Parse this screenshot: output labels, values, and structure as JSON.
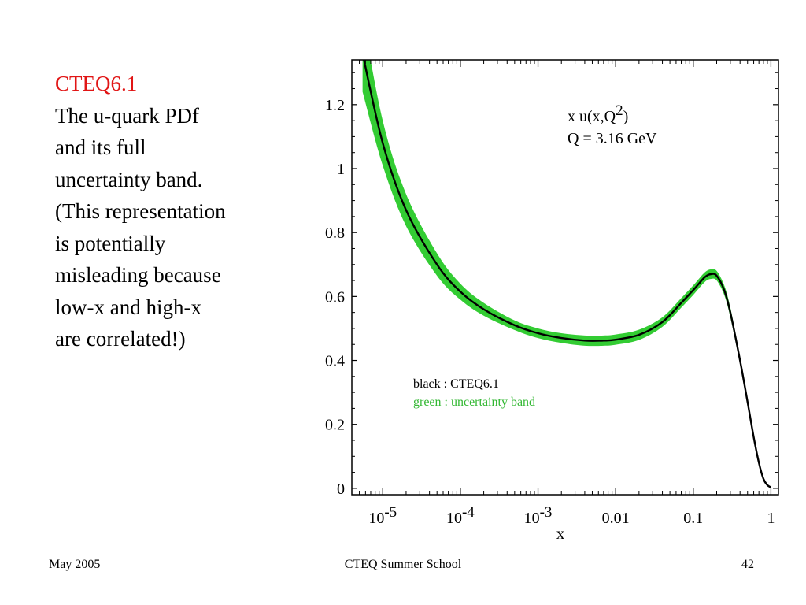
{
  "slide": {
    "title": "CTEQ6.1",
    "body_lines": [
      "The u-quark PDf",
      "and its full",
      "uncertainty band.",
      "(This representation",
      "is potentially",
      "misleading because",
      "low-x and high-x",
      "are correlated!)"
    ],
    "title_color": "#e11515"
  },
  "footer": {
    "date": "May 2005",
    "event": "CTEQ Summer School",
    "page": "42"
  },
  "chart_data": {
    "type": "line",
    "title": "",
    "xlabel": "x",
    "ylabel": "",
    "x_scale": "log",
    "xlim": [
      4e-06,
      1.25
    ],
    "ylim": [
      -0.02,
      1.34
    ],
    "x_ticks": [
      {
        "value": 1e-05,
        "base": "10",
        "exp": "-5"
      },
      {
        "value": 0.0001,
        "base": "10",
        "exp": "-4"
      },
      {
        "value": 0.001,
        "base": "10",
        "exp": "-3"
      },
      {
        "value": 0.01,
        "label": "0.01"
      },
      {
        "value": 0.1,
        "label": "0.1"
      },
      {
        "value": 1,
        "label": "1"
      }
    ],
    "y_ticks": [
      {
        "value": 0,
        "label": "0"
      },
      {
        "value": 0.2,
        "label": "0.2"
      },
      {
        "value": 0.4,
        "label": "0.4"
      },
      {
        "value": 0.6,
        "label": "0.6"
      },
      {
        "value": 0.8,
        "label": "0.8"
      },
      {
        "value": 1,
        "label": "1"
      },
      {
        "value": 1.2,
        "label": "1.2"
      }
    ],
    "annotation": {
      "line1_main": "x u(x,Q",
      "line1_sup": "2",
      "line1_end": ")",
      "line2": "Q = 3.16 GeV"
    },
    "legend": {
      "placement": "lower-left",
      "entries": [
        {
          "label": "black : CTEQ6.1",
          "color": "#000000"
        },
        {
          "label": "green : uncertainty band",
          "color": "#33b833"
        }
      ]
    },
    "series": [
      {
        "name": "CTEQ6.1",
        "color": "#000000",
        "x": [
          5.5e-06,
          1e-05,
          2e-05,
          5e-05,
          0.0001,
          0.0002,
          0.0005,
          0.001,
          0.002,
          0.004,
          0.007,
          0.01,
          0.02,
          0.04,
          0.07,
          0.1,
          0.14,
          0.17,
          0.2,
          0.25,
          0.3,
          0.4,
          0.5,
          0.6,
          0.7,
          0.8,
          0.9,
          1.0
        ],
        "y": [
          1.36,
          1.08,
          0.87,
          0.7,
          0.615,
          0.56,
          0.51,
          0.485,
          0.47,
          0.462,
          0.462,
          0.465,
          0.48,
          0.52,
          0.58,
          0.62,
          0.66,
          0.67,
          0.665,
          0.62,
          0.55,
          0.4,
          0.27,
          0.16,
          0.08,
          0.03,
          0.01,
          0.003
        ]
      },
      {
        "name": "uncertainty band",
        "type": "band",
        "color": "#33cc33",
        "x": [
          5.5e-06,
          1e-05,
          2e-05,
          5e-05,
          0.0001,
          0.0002,
          0.0005,
          0.001,
          0.002,
          0.004,
          0.007,
          0.01,
          0.02,
          0.04,
          0.07,
          0.1,
          0.14,
          0.17,
          0.2,
          0.25,
          0.3,
          0.4,
          0.5,
          0.6,
          0.7,
          0.8,
          0.9,
          1.0
        ],
        "lower": [
          1.24,
          1.01,
          0.82,
          0.665,
          0.59,
          0.54,
          0.495,
          0.47,
          0.455,
          0.446,
          0.446,
          0.449,
          0.464,
          0.505,
          0.565,
          0.605,
          0.645,
          0.655,
          0.65,
          0.605,
          0.535,
          0.39,
          0.262,
          0.154,
          0.076,
          0.028,
          0.009,
          0.002
        ],
        "upper": [
          1.48,
          1.15,
          0.92,
          0.735,
          0.64,
          0.58,
          0.525,
          0.5,
          0.485,
          0.478,
          0.478,
          0.481,
          0.496,
          0.535,
          0.595,
          0.635,
          0.675,
          0.685,
          0.68,
          0.635,
          0.565,
          0.41,
          0.278,
          0.166,
          0.084,
          0.032,
          0.011,
          0.004
        ]
      }
    ]
  }
}
